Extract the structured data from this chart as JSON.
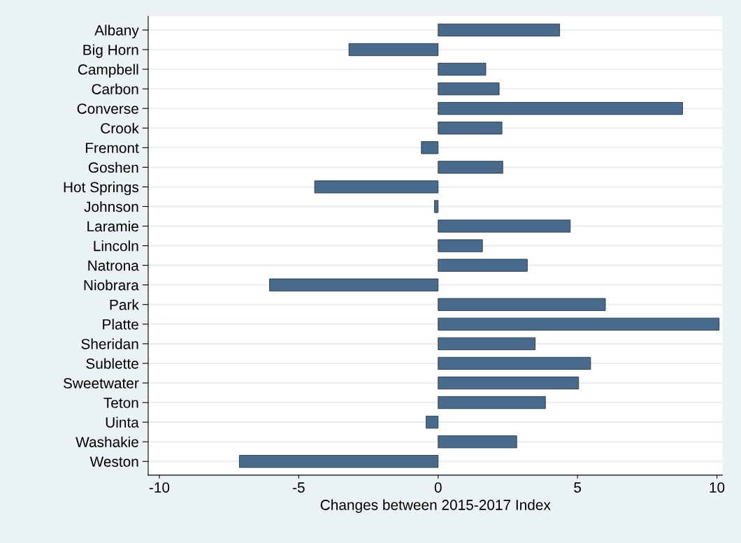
{
  "chart_data": {
    "type": "bar",
    "orientation": "horizontal",
    "xlabel": "Changes between 2015-2017 Index",
    "categories": [
      "Albany",
      "Big Horn",
      "Campbell",
      "Carbon",
      "Converse",
      "Crook",
      "Fremont",
      "Goshen",
      "Hot Springs",
      "Johnson",
      "Laramie",
      "Lincoln",
      "Natrona",
      "Niobrara",
      "Park",
      "Platte",
      "Sheridan",
      "Sublette",
      "Sweetwater",
      "Teton",
      "Uinta",
      "Washakie",
      "Weston"
    ],
    "values": [
      4.36,
      -3.2,
      1.71,
      2.19,
      8.77,
      2.29,
      -0.6,
      2.32,
      -4.43,
      -0.13,
      4.74,
      1.59,
      3.2,
      -6.05,
      6.0,
      10.08,
      3.48,
      5.47,
      5.04,
      3.85,
      -0.43,
      2.82,
      -7.13
    ],
    "color": "#4a6a8b",
    "xlim": [
      -10.4,
      10.2
    ],
    "xticks": [
      -10,
      -5,
      0,
      5,
      10
    ],
    "grid": "y"
  }
}
